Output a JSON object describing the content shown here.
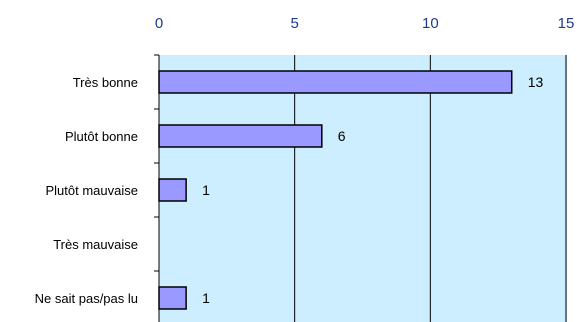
{
  "chart_data": {
    "type": "bar",
    "orientation": "horizontal",
    "categories": [
      "Très bonne",
      "Plutôt bonne",
      "Plutôt mauvaise",
      "Très mauvaise",
      "Ne sait pas/pas lu"
    ],
    "values": [
      13,
      6,
      1,
      0,
      1
    ],
    "data_labels": [
      "13",
      "6",
      "1",
      "",
      "1"
    ],
    "xlim": [
      0,
      15
    ],
    "x_ticks": [
      "0",
      "5",
      "10",
      "15"
    ],
    "x_tick_values": [
      0,
      5,
      10,
      15
    ],
    "x_axis_position": "top",
    "grid": true,
    "legend": false,
    "title": "",
    "xlabel": "",
    "ylabel": ""
  },
  "colors": {
    "plot_background": "#cceeff",
    "bar_fill": "#9999ff",
    "bar_stroke": "#000000",
    "tick_label_color": "#1f3a8f",
    "gridline": "#000000"
  }
}
